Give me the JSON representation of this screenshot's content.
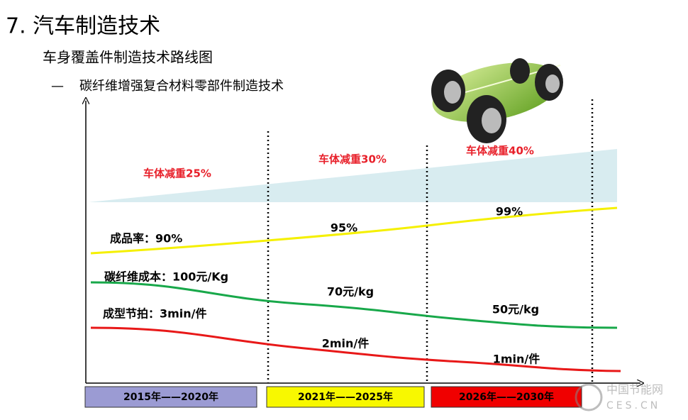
{
  "header": {
    "title": "7. 汽车制造技术",
    "subtitle": "车身覆盖件制造技术路线图",
    "topic_dash": "—",
    "topic": "碳纤维增强复合材料零部件制造技术"
  },
  "stages": [
    {
      "period": "2015年——2020年",
      "weight_reduction": "车体减重25%",
      "yield": "成品率：90%",
      "cost": "碳纤维成本：100元/Kg",
      "cycle": "成型节拍：3min/件"
    },
    {
      "period": "2021年——2025年",
      "weight_reduction": "车体减重30%",
      "yield": "95%",
      "cost": "70元/kg",
      "cycle": "2min/件"
    },
    {
      "period": "2026年——2030年",
      "weight_reduction": "车体减重40%",
      "yield": "99%",
      "cost": "50元/kg",
      "cycle": "1min/件"
    }
  ],
  "watermark": {
    "name": "中国节能网",
    "site": "CES.CN"
  }
}
